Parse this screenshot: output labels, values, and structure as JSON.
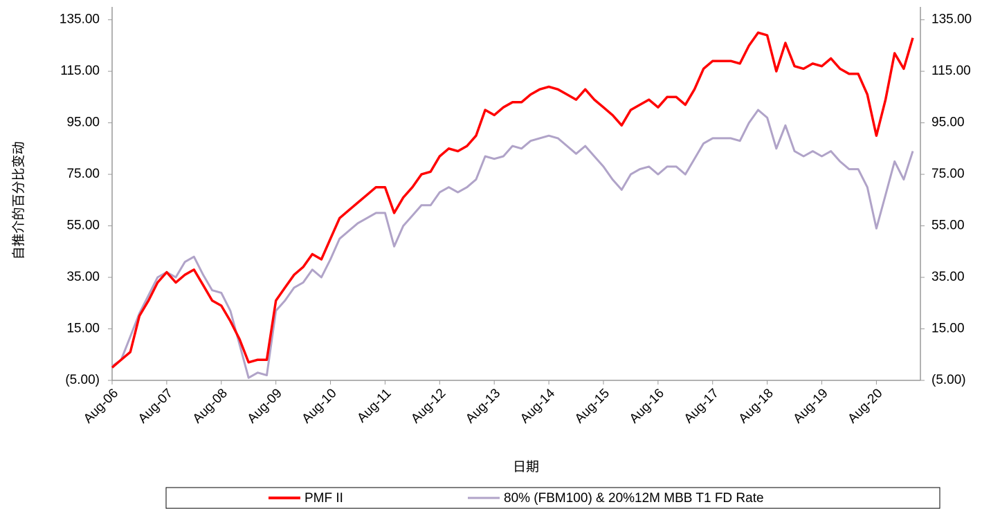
{
  "chart_data": {
    "type": "line",
    "x_label": "日期",
    "y_label": "自推介的百分比变动",
    "categories": [
      "Aug-06",
      null,
      null,
      null,
      null,
      null,
      "Aug-07",
      null,
      null,
      null,
      null,
      null,
      "Aug-08",
      null,
      null,
      null,
      null,
      null,
      "Aug-09",
      null,
      null,
      null,
      null,
      null,
      "Aug-10",
      null,
      null,
      null,
      null,
      null,
      "Aug-11",
      null,
      null,
      null,
      null,
      null,
      "Aug-12",
      null,
      null,
      null,
      null,
      null,
      "Aug-13",
      null,
      null,
      null,
      null,
      null,
      "Aug-14",
      null,
      null,
      null,
      null,
      null,
      "Aug-15",
      null,
      null,
      null,
      null,
      null,
      "Aug-16",
      null,
      null,
      null,
      null,
      null,
      "Aug-17",
      null,
      null,
      null,
      null,
      null,
      "Aug-18",
      null,
      null,
      null,
      null,
      null,
      "Aug-19",
      null,
      null,
      null,
      null,
      null,
      "Aug-20",
      null,
      null,
      null,
      null
    ],
    "series": [
      {
        "name": "PMF II",
        "color": "#ff0000",
        "values": [
          0,
          3,
          6,
          20,
          26,
          33,
          37,
          33,
          36,
          38,
          32,
          26,
          24,
          18,
          11,
          2,
          3,
          3,
          26,
          31,
          36,
          39,
          44,
          42,
          50,
          58,
          61,
          64,
          67,
          70,
          70,
          60,
          66,
          70,
          75,
          76,
          82,
          85,
          84,
          86,
          90,
          100,
          98,
          101,
          103,
          103,
          106,
          108,
          109,
          108,
          106,
          104,
          108,
          104,
          101,
          98,
          94,
          100,
          102,
          104,
          101,
          105,
          105,
          102,
          108,
          116,
          119,
          119,
          119,
          118,
          125,
          130,
          129,
          115,
          126,
          117,
          116,
          118,
          117,
          120,
          116,
          114,
          114,
          106,
          90,
          104,
          122,
          116,
          128
        ]
      },
      {
        "name": "80% (FBM100) & 20%12M MBB T1 FD Rate",
        "color": "#b0a3c8",
        "values": [
          0.5,
          3,
          12,
          21,
          28,
          35,
          37,
          35,
          41,
          43,
          36,
          30,
          29,
          22,
          9,
          -4,
          -2,
          -3,
          22,
          26,
          31,
          33,
          38,
          35,
          42,
          50,
          53,
          56,
          58,
          60,
          60,
          47,
          55,
          59,
          63,
          63,
          68,
          70,
          68,
          70,
          73,
          82,
          81,
          82,
          86,
          85,
          88,
          89,
          90,
          89,
          86,
          83,
          86,
          82,
          78,
          73,
          69,
          75,
          77,
          78,
          75,
          78,
          78,
          75,
          81,
          87,
          89,
          89,
          89,
          88,
          95,
          100,
          97,
          85,
          94,
          84,
          82,
          84,
          82,
          84,
          80,
          77,
          77,
          70,
          54,
          67,
          80,
          73,
          84
        ]
      }
    ],
    "ylim": [
      -5,
      140
    ],
    "yticks": [
      {
        "value": -5,
        "label": "(5.00)"
      },
      {
        "value": 15,
        "label": "15.00"
      },
      {
        "value": 35,
        "label": "35.00"
      },
      {
        "value": 55,
        "label": "55.00"
      },
      {
        "value": 75,
        "label": "75.00"
      },
      {
        "value": 95,
        "label": "95.00"
      },
      {
        "value": 115,
        "label": "115.00"
      },
      {
        "value": 135,
        "label": "135.00"
      }
    ],
    "y2lim": [
      -5,
      140
    ],
    "y2ticks": [
      {
        "value": -5,
        "label": "(5.00)"
      },
      {
        "value": 15,
        "label": "15.00"
      },
      {
        "value": 35,
        "label": "35.00"
      },
      {
        "value": 55,
        "label": "55.00"
      },
      {
        "value": 75,
        "label": "75.00"
      },
      {
        "value": 95,
        "label": "95.00"
      },
      {
        "value": 115,
        "label": "115.00"
      },
      {
        "value": 135,
        "label": "135.00"
      }
    ],
    "negative_tick_color": "#ff0000",
    "legend": "bottom"
  }
}
